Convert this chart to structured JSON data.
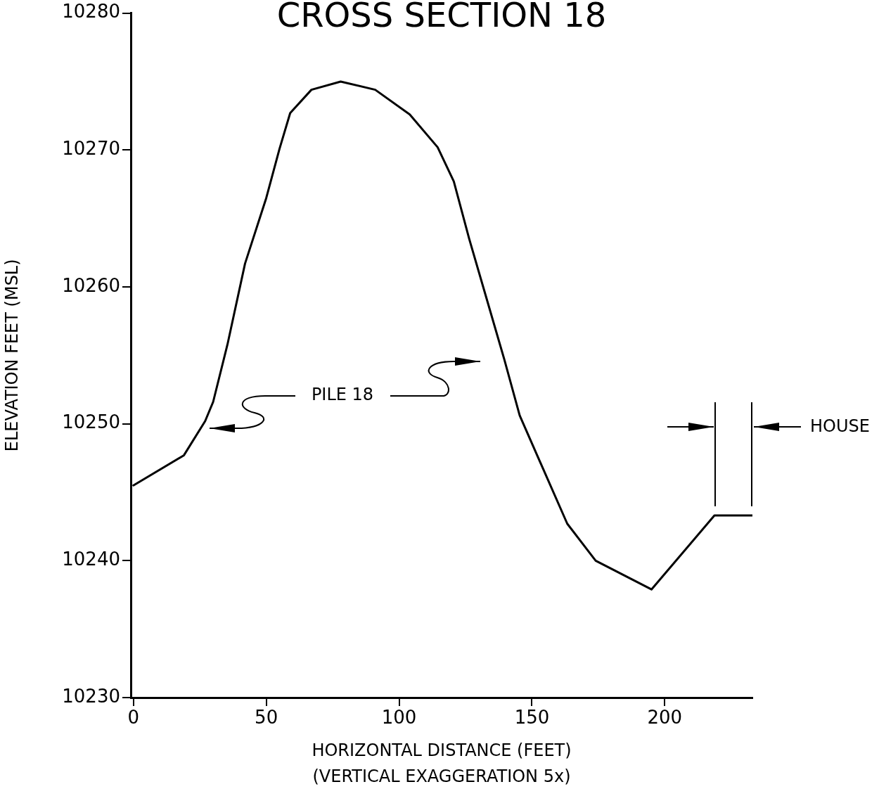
{
  "chart_data": {
    "type": "line",
    "title": "CROSS SECTION 18",
    "xlabel": "HORIZONTAL DISTANCE (FEET)",
    "ylabel": "ELEVATION FEET (MSL)",
    "annotations": [
      "PILE 18",
      "HOUSE",
      "(VERTICAL EXAGGERATION 5x)"
    ],
    "x": [
      0,
      19,
      27,
      30,
      35.4,
      42,
      50,
      55,
      59,
      67,
      78,
      91,
      104,
      114.5,
      120.6,
      126.4,
      133,
      139.6,
      145.4,
      154,
      163.3,
      174,
      195,
      218.7,
      233
    ],
    "series": [
      {
        "color": "#000000",
        "values": [
          10245.5,
          10247.7,
          10250.2,
          10251.6,
          10255.8,
          10261.7,
          10266.5,
          10270.1,
          10272.7,
          10274.4,
          10275.0,
          10274.4,
          10272.6,
          10270.2,
          10267.7,
          10263.5,
          10259.1,
          10254.7,
          10250.6,
          10246.8,
          10242.7,
          10240.0,
          10237.9,
          10243.3,
          10243.3
        ]
      }
    ],
    "xlim": [
      -1,
      233
    ],
    "ylim": [
      10230,
      10280
    ],
    "xticks": [
      0,
      50,
      100,
      150,
      200
    ],
    "yticks": [
      10230,
      10240,
      10250,
      10260,
      10270,
      10280
    ],
    "grid": false,
    "legend": false,
    "marker": "none",
    "line_style": "solid"
  }
}
